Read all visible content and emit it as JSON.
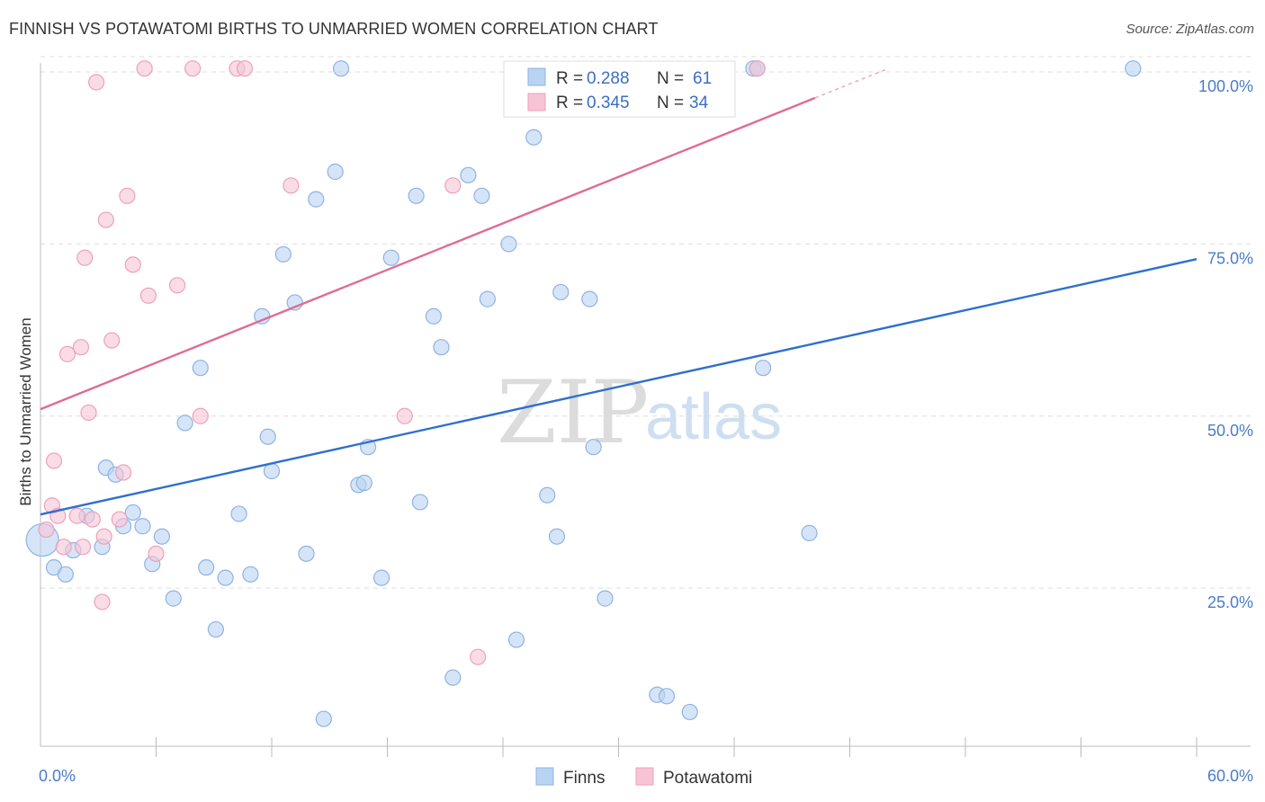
{
  "title": "FINNISH VS POTAWATOMI BIRTHS TO UNMARRIED WOMEN CORRELATION CHART",
  "source": "Source: ZipAtlas.com",
  "watermark": {
    "zip": "ZIP",
    "atlas": "atlas"
  },
  "colors": {
    "finns_fill": "#b9d3f2",
    "finns_stroke": "#8fb3e3",
    "finns_line": "#2f6fcf",
    "pota_fill": "#f7c4d5",
    "pota_stroke": "#eea0bb",
    "pota_line": "#e06b96",
    "grid": "#dddddd",
    "tick_text": "#4a7cc9"
  },
  "legend": {
    "rows": [
      {
        "r_label": "R =",
        "r_value": "0.288",
        "n_label": "N =",
        "n_value": "61"
      },
      {
        "r_label": "R =",
        "r_value": "0.345",
        "n_label": "N =",
        "n_value": "34"
      }
    ]
  },
  "bottom_legend": [
    "Finns",
    "Potawatomi"
  ],
  "chart_data": {
    "type": "scatter",
    "title": "FINNISH VS POTAWATOMI BIRTHS TO UNMARRIED WOMEN CORRELATION CHART",
    "xlabel": "",
    "ylabel": "Births to Unmarried Women",
    "xlim": [
      0,
      60
    ],
    "ylim": [
      0,
      104
    ],
    "x_tick_labels": [
      "0.0%",
      "60.0%"
    ],
    "y_tick_labels": [
      "25.0%",
      "50.0%",
      "75.0%",
      "100.0%"
    ],
    "y_ticks": [
      25,
      50,
      75,
      100
    ],
    "series": [
      {
        "name": "Finns",
        "r": 0.288,
        "n": 61,
        "trend": {
          "x": [
            0,
            60
          ],
          "y": [
            35.7,
            72.8
          ]
        },
        "points": [
          [
            0.1,
            32.0
          ],
          [
            0.7,
            28.0
          ],
          [
            1.3,
            27.0
          ],
          [
            1.7,
            30.5
          ],
          [
            2.4,
            35.5
          ],
          [
            3.4,
            42.5
          ],
          [
            3.2,
            31.0
          ],
          [
            3.9,
            41.5
          ],
          [
            4.3,
            34.0
          ],
          [
            4.8,
            36.0
          ],
          [
            5.3,
            34.0
          ],
          [
            5.8,
            28.5
          ],
          [
            6.3,
            32.5
          ],
          [
            6.9,
            23.5
          ],
          [
            7.5,
            49.0
          ],
          [
            8.3,
            57.0
          ],
          [
            8.6,
            28.0
          ],
          [
            9.1,
            19.0
          ],
          [
            9.6,
            26.5
          ],
          [
            10.3,
            35.8
          ],
          [
            10.9,
            27.0
          ],
          [
            11.5,
            64.5
          ],
          [
            11.8,
            47.0
          ],
          [
            12.0,
            42.0
          ],
          [
            12.6,
            73.5
          ],
          [
            13.2,
            66.5
          ],
          [
            13.8,
            30.0
          ],
          [
            14.3,
            81.5
          ],
          [
            14.7,
            6.0
          ],
          [
            15.3,
            85.5
          ],
          [
            15.6,
            100.5
          ],
          [
            16.5,
            40.0
          ],
          [
            16.8,
            40.3
          ],
          [
            17.0,
            45.5
          ],
          [
            17.7,
            26.5
          ],
          [
            18.2,
            73.0
          ],
          [
            19.5,
            82.0
          ],
          [
            19.7,
            37.5
          ],
          [
            20.4,
            64.5
          ],
          [
            20.8,
            60.0
          ],
          [
            21.4,
            12.0
          ],
          [
            22.2,
            85.0
          ],
          [
            22.9,
            82.0
          ],
          [
            23.2,
            67.0
          ],
          [
            24.3,
            75.0
          ],
          [
            24.7,
            17.5
          ],
          [
            25.6,
            90.5
          ],
          [
            26.3,
            38.5
          ],
          [
            26.8,
            32.5
          ],
          [
            27.0,
            68.0
          ],
          [
            28.5,
            67.0
          ],
          [
            28.7,
            45.5
          ],
          [
            29.3,
            23.5
          ],
          [
            32.0,
            9.5
          ],
          [
            32.5,
            9.3
          ],
          [
            33.7,
            7.0
          ],
          [
            37.0,
            100.5
          ],
          [
            37.2,
            100.5
          ],
          [
            37.5,
            57.0
          ],
          [
            39.9,
            33.0
          ],
          [
            56.7,
            100.5
          ]
        ]
      },
      {
        "name": "Potawatomi",
        "r": 0.345,
        "n": 34,
        "trend": {
          "x": [
            0,
            44
          ],
          "y": [
            51.0,
            100.5
          ]
        },
        "points": [
          [
            0.3,
            33.5
          ],
          [
            0.6,
            37.0
          ],
          [
            0.7,
            43.5
          ],
          [
            0.9,
            35.5
          ],
          [
            1.2,
            31.0
          ],
          [
            1.4,
            59.0
          ],
          [
            1.9,
            35.5
          ],
          [
            2.2,
            31.0
          ],
          [
            2.1,
            60.0
          ],
          [
            2.3,
            73.0
          ],
          [
            2.5,
            50.5
          ],
          [
            2.7,
            35.0
          ],
          [
            2.9,
            98.5
          ],
          [
            3.3,
            32.5
          ],
          [
            3.2,
            23.0
          ],
          [
            3.4,
            78.5
          ],
          [
            3.7,
            61.0
          ],
          [
            4.1,
            35.0
          ],
          [
            4.3,
            41.8
          ],
          [
            4.5,
            82.0
          ],
          [
            4.8,
            72.0
          ],
          [
            5.4,
            100.5
          ],
          [
            5.6,
            67.5
          ],
          [
            6.0,
            30.0
          ],
          [
            7.1,
            69.0
          ],
          [
            7.9,
            100.5
          ],
          [
            8.3,
            50.0
          ],
          [
            10.2,
            100.5
          ],
          [
            10.6,
            100.5
          ],
          [
            13.0,
            83.5
          ],
          [
            18.9,
            50.0
          ],
          [
            21.4,
            83.5
          ],
          [
            22.7,
            15.0
          ],
          [
            37.2,
            100.5
          ]
        ]
      }
    ]
  }
}
